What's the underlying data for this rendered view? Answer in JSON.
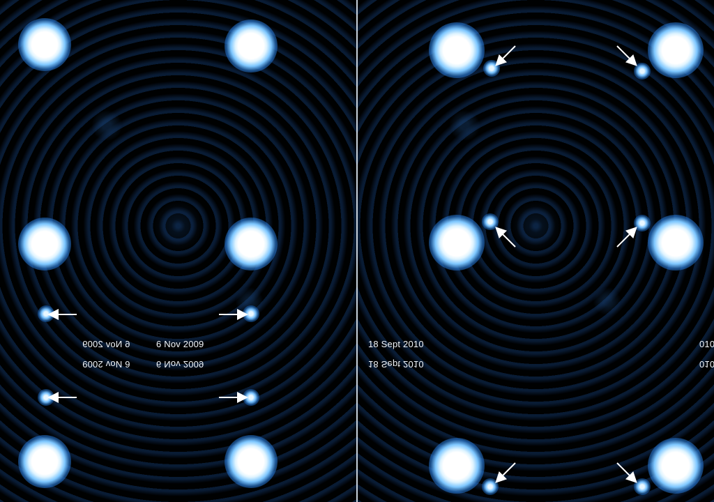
{
  "panels": [
    {
      "name": "left-panel",
      "labels": {
        "date": "6 Nov 2009"
      }
    },
    {
      "name": "right-panel",
      "labels": {
        "date": "18 Sept 2010",
        "partial_right": "010"
      }
    }
  ],
  "colors": {
    "background": "#000000",
    "star_core": "#ffffff",
    "glow": "#3e8ad6",
    "arrow": "#ffffff",
    "divider": "#c9d3dd"
  }
}
